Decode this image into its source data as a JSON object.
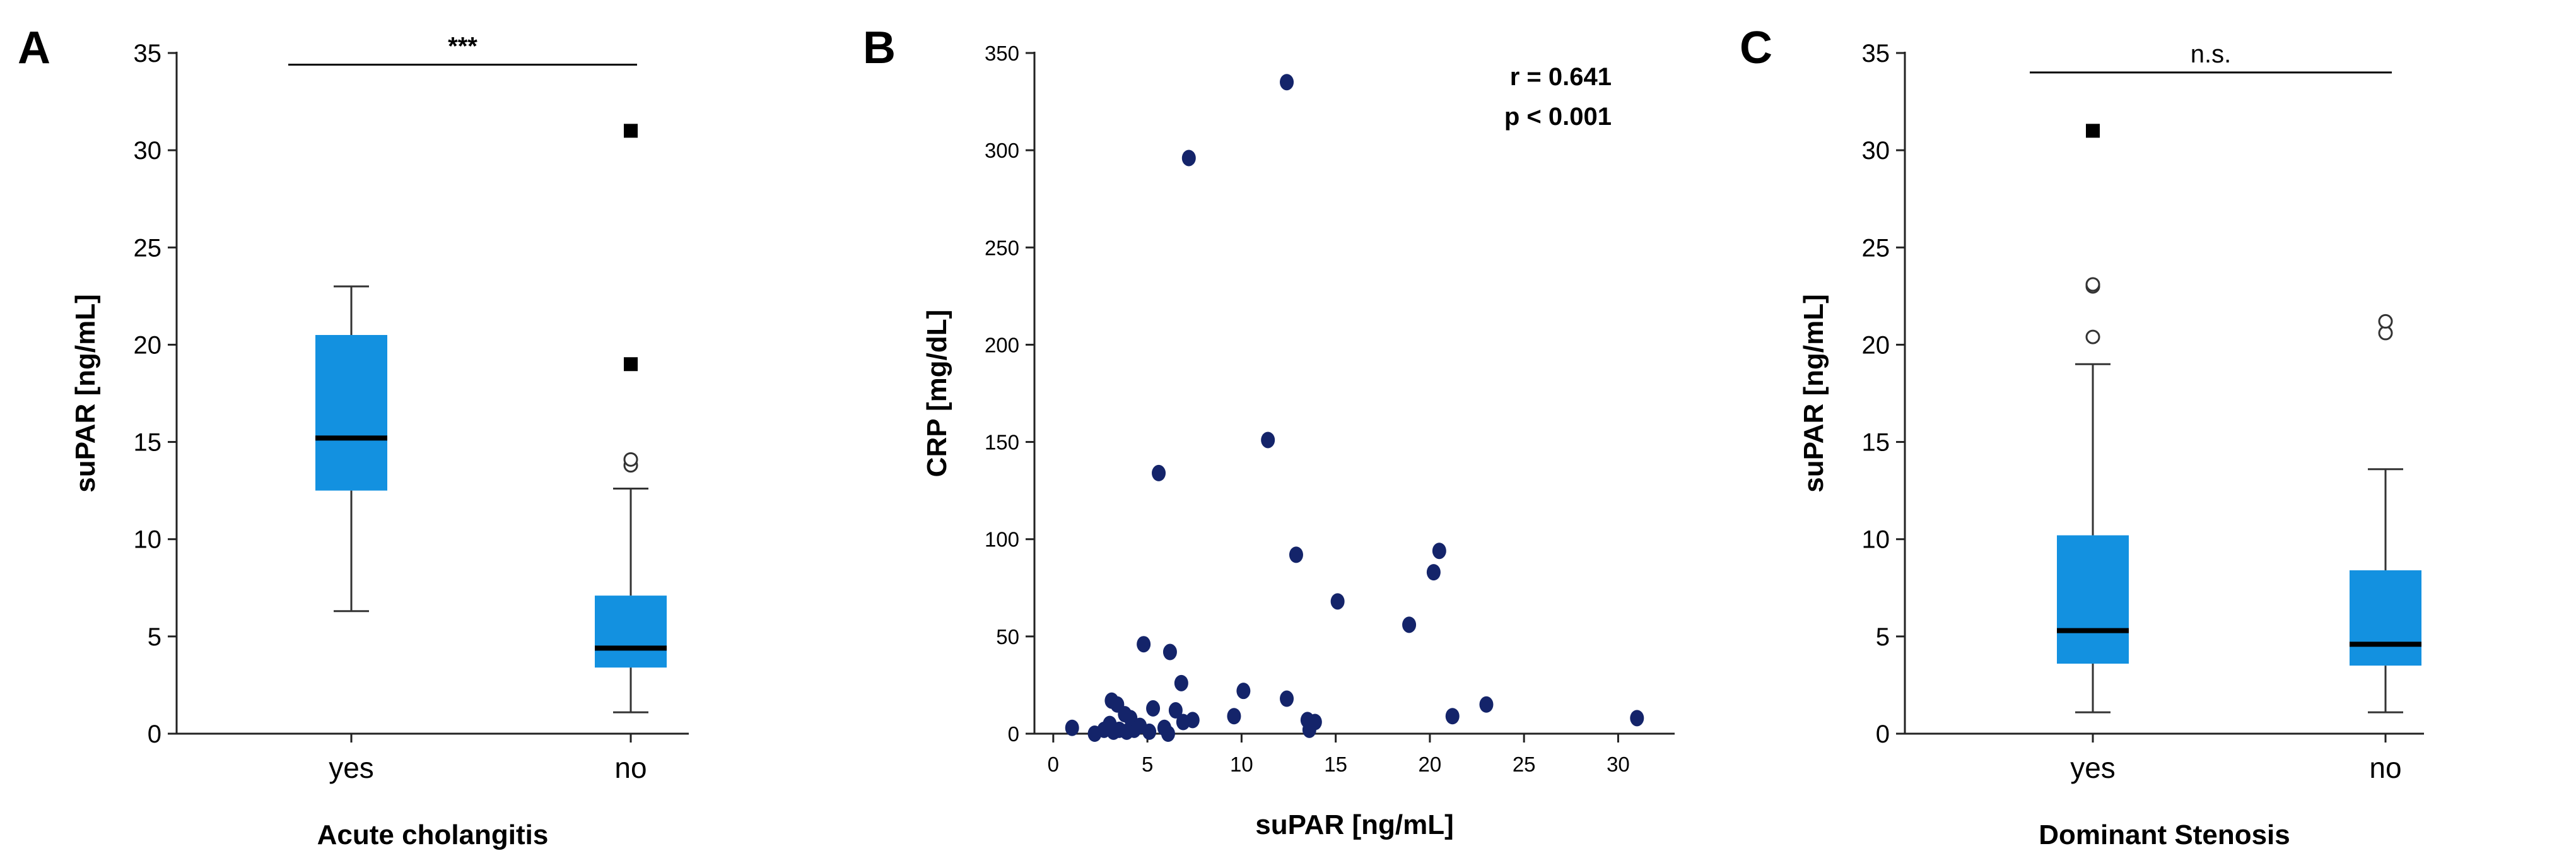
{
  "chart_data": [
    {
      "panel": "A",
      "type": "box",
      "title": "",
      "xlabel": "Acute cholangitis",
      "ylabel": "suPAR [ng/mL]",
      "ylim": [
        0,
        35
      ],
      "yticks": [
        0,
        5,
        10,
        15,
        20,
        25,
        30,
        35
      ],
      "categories": [
        "yes",
        "no"
      ],
      "boxes": [
        {
          "category": "yes",
          "whisker_low": 6.3,
          "q1": 12.5,
          "median": 15.2,
          "q3": 20.5,
          "whisker_high": 23.0,
          "outliers": [],
          "extremes": []
        },
        {
          "category": "no",
          "whisker_low": 1.1,
          "q1": 3.4,
          "median": 4.4,
          "q3": 7.1,
          "whisker_high": 12.6,
          "outliers": [
            13.8,
            14.1
          ],
          "extremes": [
            19.0,
            31.0
          ]
        }
      ],
      "significance": {
        "label": "***",
        "between": [
          "yes",
          "no"
        ],
        "level": 34.4
      },
      "grid": false,
      "legend": "none"
    },
    {
      "panel": "B",
      "type": "scatter",
      "title": "",
      "xlabel": "suPAR [ng/mL]",
      "ylabel": "CRP [mg/dL]",
      "xlim": [
        -1,
        33
      ],
      "ylim": [
        0,
        350
      ],
      "xticks": [
        0,
        5,
        10,
        15,
        20,
        25,
        30
      ],
      "yticks": [
        0,
        50,
        100,
        150,
        200,
        250,
        300,
        350
      ],
      "annotation": [
        "r = 0.641",
        "p < 0.001"
      ],
      "points": [
        [
          12.4,
          335
        ],
        [
          7.2,
          296
        ],
        [
          11.4,
          151
        ],
        [
          5.6,
          134
        ],
        [
          12.9,
          92
        ],
        [
          20.5,
          94
        ],
        [
          20.2,
          83
        ],
        [
          15.1,
          68
        ],
        [
          18.9,
          56
        ],
        [
          4.8,
          46
        ],
        [
          6.2,
          42
        ],
        [
          6.8,
          26
        ],
        [
          10.1,
          22
        ],
        [
          12.4,
          18
        ],
        [
          3.1,
          17
        ],
        [
          3.4,
          15
        ],
        [
          23.0,
          15
        ],
        [
          5.3,
          13
        ],
        [
          6.5,
          12
        ],
        [
          3.8,
          10
        ],
        [
          9.6,
          9
        ],
        [
          21.2,
          9
        ],
        [
          31.0,
          8
        ],
        [
          7.4,
          7
        ],
        [
          4.1,
          8
        ],
        [
          13.5,
          7
        ],
        [
          13.9,
          6
        ],
        [
          3.0,
          5
        ],
        [
          4.6,
          4
        ],
        [
          6.9,
          6
        ],
        [
          5.9,
          3
        ],
        [
          3.5,
          2
        ],
        [
          2.7,
          2
        ],
        [
          1.0,
          3
        ],
        [
          13.6,
          2
        ],
        [
          4.3,
          2
        ],
        [
          5.1,
          1
        ],
        [
          3.9,
          1
        ],
        [
          6.1,
          0
        ],
        [
          2.2,
          0
        ],
        [
          3.2,
          1
        ]
      ],
      "grid": false,
      "legend": "none"
    },
    {
      "panel": "C",
      "type": "box",
      "title": "",
      "xlabel": "Dominant Stenosis",
      "ylabel": "suPAR [ng/mL]",
      "ylim": [
        0,
        35
      ],
      "yticks": [
        0,
        5,
        10,
        15,
        20,
        25,
        30,
        35
      ],
      "categories": [
        "yes",
        "no"
      ],
      "boxes": [
        {
          "category": "yes",
          "whisker_low": 1.1,
          "q1": 3.6,
          "median": 5.3,
          "q3": 10.2,
          "whisker_high": 19.0,
          "outliers": [
            20.4,
            23.0,
            23.1
          ],
          "extremes": [
            31.0
          ]
        },
        {
          "category": "no",
          "whisker_low": 1.1,
          "q1": 3.5,
          "median": 4.6,
          "q3": 8.4,
          "whisker_high": 13.6,
          "outliers": [
            20.6,
            21.2
          ],
          "extremes": []
        }
      ],
      "significance": {
        "label": "n.s.",
        "between": [
          "yes",
          "no"
        ],
        "level": 34.0
      },
      "grid": false,
      "legend": "none"
    }
  ]
}
